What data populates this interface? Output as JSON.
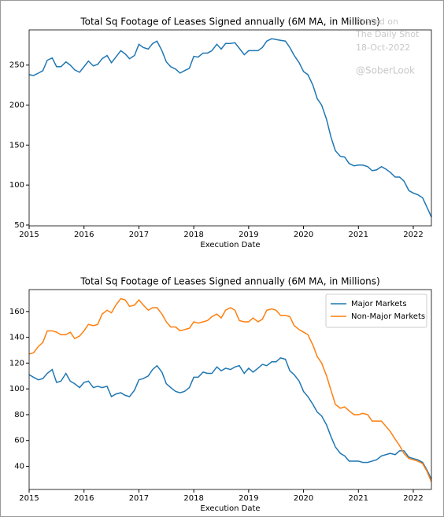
{
  "chart_data": [
    {
      "type": "line",
      "title": "Total Sq Footage of Leases Signed annually (6M MA, in Millions)",
      "x_label": "Execution Date",
      "annotations": [
        "Posted on",
        "The Daily Shot",
        "18-Oct-2022",
        "@SoberLook"
      ],
      "x": [
        2015.0,
        2015.08,
        2015.17,
        2015.25,
        2015.33,
        2015.42,
        2015.5,
        2015.58,
        2015.67,
        2015.75,
        2015.83,
        2015.92,
        2016.0,
        2016.08,
        2016.17,
        2016.25,
        2016.33,
        2016.42,
        2016.5,
        2016.58,
        2016.67,
        2016.75,
        2016.83,
        2016.92,
        2017.0,
        2017.08,
        2017.17,
        2017.25,
        2017.33,
        2017.42,
        2017.5,
        2017.58,
        2017.67,
        2017.75,
        2017.83,
        2017.92,
        2018.0,
        2018.08,
        2018.17,
        2018.25,
        2018.33,
        2018.42,
        2018.5,
        2018.58,
        2018.67,
        2018.75,
        2018.83,
        2018.92,
        2019.0,
        2019.08,
        2019.17,
        2019.25,
        2019.33,
        2019.42,
        2019.5,
        2019.58,
        2019.67,
        2019.75,
        2019.83,
        2019.92,
        2020.0,
        2020.08,
        2020.17,
        2020.25,
        2020.33,
        2020.42,
        2020.5,
        2020.58,
        2020.67,
        2020.75,
        2020.83,
        2020.92,
        2021.0,
        2021.08,
        2021.17,
        2021.25,
        2021.33,
        2021.42,
        2021.5,
        2021.58,
        2021.67,
        2021.75,
        2021.83,
        2021.92,
        2022.0,
        2022.08,
        2022.17,
        2022.25,
        2022.33
      ],
      "values": [
        238,
        237,
        240,
        243,
        256,
        259,
        248,
        248,
        254,
        250,
        244,
        241,
        248,
        255,
        249,
        251,
        258,
        262,
        253,
        260,
        268,
        264,
        258,
        262,
        276,
        272,
        270,
        277,
        280,
        268,
        254,
        248,
        245,
        240,
        243,
        246,
        261,
        260,
        265,
        265,
        268,
        276,
        270,
        277,
        277,
        278,
        271,
        263,
        268,
        268,
        268,
        272,
        280,
        283,
        282,
        281,
        280,
        272,
        262,
        253,
        242,
        238,
        225,
        208,
        200,
        182,
        160,
        143,
        136,
        135,
        127,
        124,
        125,
        125,
        123,
        118,
        119,
        123,
        120,
        116,
        110,
        110,
        105,
        93,
        90,
        88,
        84,
        72,
        60
      ],
      "color": "#1f77b4",
      "xlim": [
        2015,
        2022.33
      ],
      "xticks": [
        2015,
        2016,
        2017,
        2018,
        2019,
        2020,
        2021,
        2022
      ],
      "ylim": [
        49,
        294
      ],
      "yticks": [
        50,
        100,
        150,
        200,
        250
      ]
    },
    {
      "type": "line",
      "title": "Total Sq Footage of Leases Signed annually (6M MA, in Millions)",
      "x_label": "Execution Date",
      "legend": "upper right",
      "x": [
        2015.0,
        2015.08,
        2015.17,
        2015.25,
        2015.33,
        2015.42,
        2015.5,
        2015.58,
        2015.67,
        2015.75,
        2015.83,
        2015.92,
        2016.0,
        2016.08,
        2016.17,
        2016.25,
        2016.33,
        2016.42,
        2016.5,
        2016.58,
        2016.67,
        2016.75,
        2016.83,
        2016.92,
        2017.0,
        2017.08,
        2017.17,
        2017.25,
        2017.33,
        2017.42,
        2017.5,
        2017.58,
        2017.67,
        2017.75,
        2017.83,
        2017.92,
        2018.0,
        2018.08,
        2018.17,
        2018.25,
        2018.33,
        2018.42,
        2018.5,
        2018.58,
        2018.67,
        2018.75,
        2018.83,
        2018.92,
        2019.0,
        2019.08,
        2019.17,
        2019.25,
        2019.33,
        2019.42,
        2019.5,
        2019.58,
        2019.67,
        2019.75,
        2019.83,
        2019.92,
        2020.0,
        2020.08,
        2020.17,
        2020.25,
        2020.33,
        2020.42,
        2020.5,
        2020.58,
        2020.67,
        2020.75,
        2020.83,
        2020.92,
        2021.0,
        2021.08,
        2021.17,
        2021.25,
        2021.33,
        2021.42,
        2021.5,
        2021.58,
        2021.67,
        2021.75,
        2021.83,
        2021.92,
        2022.0,
        2022.08,
        2022.17,
        2022.25,
        2022.33
      ],
      "series": [
        {
          "name": "Major Markets",
          "color": "#1f77b4",
          "values": [
            111,
            109,
            107,
            108,
            112,
            115,
            105,
            106,
            112,
            106,
            104,
            101,
            105,
            106,
            101,
            102,
            101,
            102,
            94,
            96,
            97,
            95,
            94,
            99,
            107,
            108,
            110,
            115,
            118,
            113,
            104,
            101,
            98,
            97,
            98,
            101,
            109,
            109,
            113,
            112,
            112,
            117,
            114,
            116,
            115,
            117,
            118,
            112,
            116,
            113,
            116,
            119,
            118,
            121,
            121,
            124,
            123,
            114,
            111,
            106,
            98,
            94,
            88,
            82,
            79,
            72,
            63,
            55,
            50,
            48,
            44,
            44,
            44,
            43,
            43,
            44,
            45,
            48,
            49,
            50,
            49,
            52,
            52,
            47,
            46,
            45,
            43,
            37,
            30
          ]
        },
        {
          "name": "Non-Major Markets",
          "color": "#ff7f0e",
          "values": [
            127,
            128,
            133,
            136,
            145,
            145,
            144,
            142,
            142,
            144,
            139,
            141,
            145,
            150,
            149,
            150,
            158,
            161,
            159,
            165,
            170,
            169,
            164,
            165,
            169,
            165,
            161,
            163,
            163,
            158,
            152,
            148,
            148,
            145,
            146,
            147,
            152,
            151,
            152,
            153,
            156,
            158,
            155,
            161,
            163,
            161,
            153,
            152,
            152,
            155,
            152,
            154,
            161,
            162,
            161,
            157,
            157,
            156,
            149,
            146,
            144,
            142,
            134,
            125,
            120,
            110,
            99,
            88,
            85,
            86,
            83,
            80,
            80,
            81,
            80,
            75,
            75,
            75,
            71,
            67,
            61,
            56,
            50,
            46,
            45,
            44,
            42,
            36,
            28
          ]
        }
      ],
      "xlim": [
        2015,
        2022.33
      ],
      "xticks": [
        2015,
        2016,
        2017,
        2018,
        2019,
        2020,
        2021,
        2022
      ],
      "ylim": [
        22,
        177
      ],
      "yticks": [
        40,
        60,
        80,
        100,
        120,
        140,
        160
      ]
    }
  ]
}
